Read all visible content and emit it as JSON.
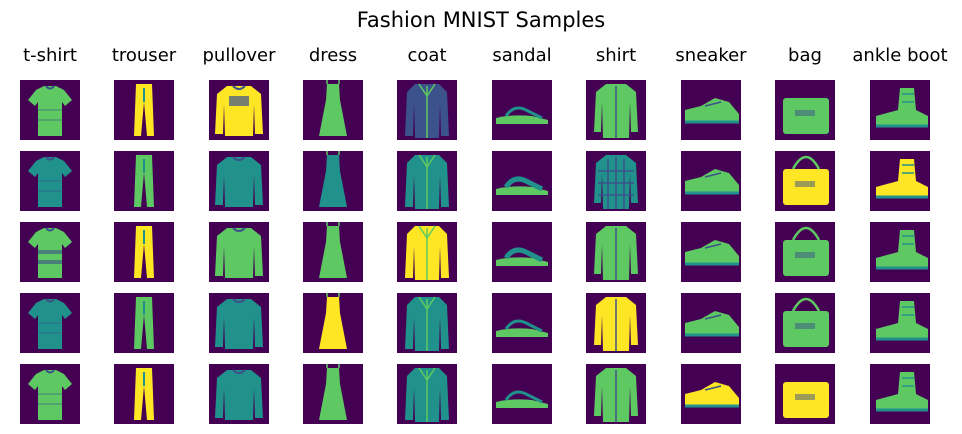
{
  "figure": {
    "title": "Fashion MNIST Samples"
  },
  "colors": {
    "background": "#440154",
    "dark": "#3b528b",
    "mid": "#21918c",
    "light": "#5ec962",
    "bright": "#fde725"
  },
  "columns": [
    {
      "label": "t-shirt",
      "shape": "tshirt"
    },
    {
      "label": "trouser",
      "shape": "trouser"
    },
    {
      "label": "pullover",
      "shape": "pullover"
    },
    {
      "label": "dress",
      "shape": "dress"
    },
    {
      "label": "coat",
      "shape": "coat"
    },
    {
      "label": "sandal",
      "shape": "sandal"
    },
    {
      "label": "shirt",
      "shape": "shirt"
    },
    {
      "label": "sneaker",
      "shape": "sneaker"
    },
    {
      "label": "bag",
      "shape": "bag"
    },
    {
      "label": "ankle boot",
      "shape": "boot"
    }
  ],
  "rows": 5
}
